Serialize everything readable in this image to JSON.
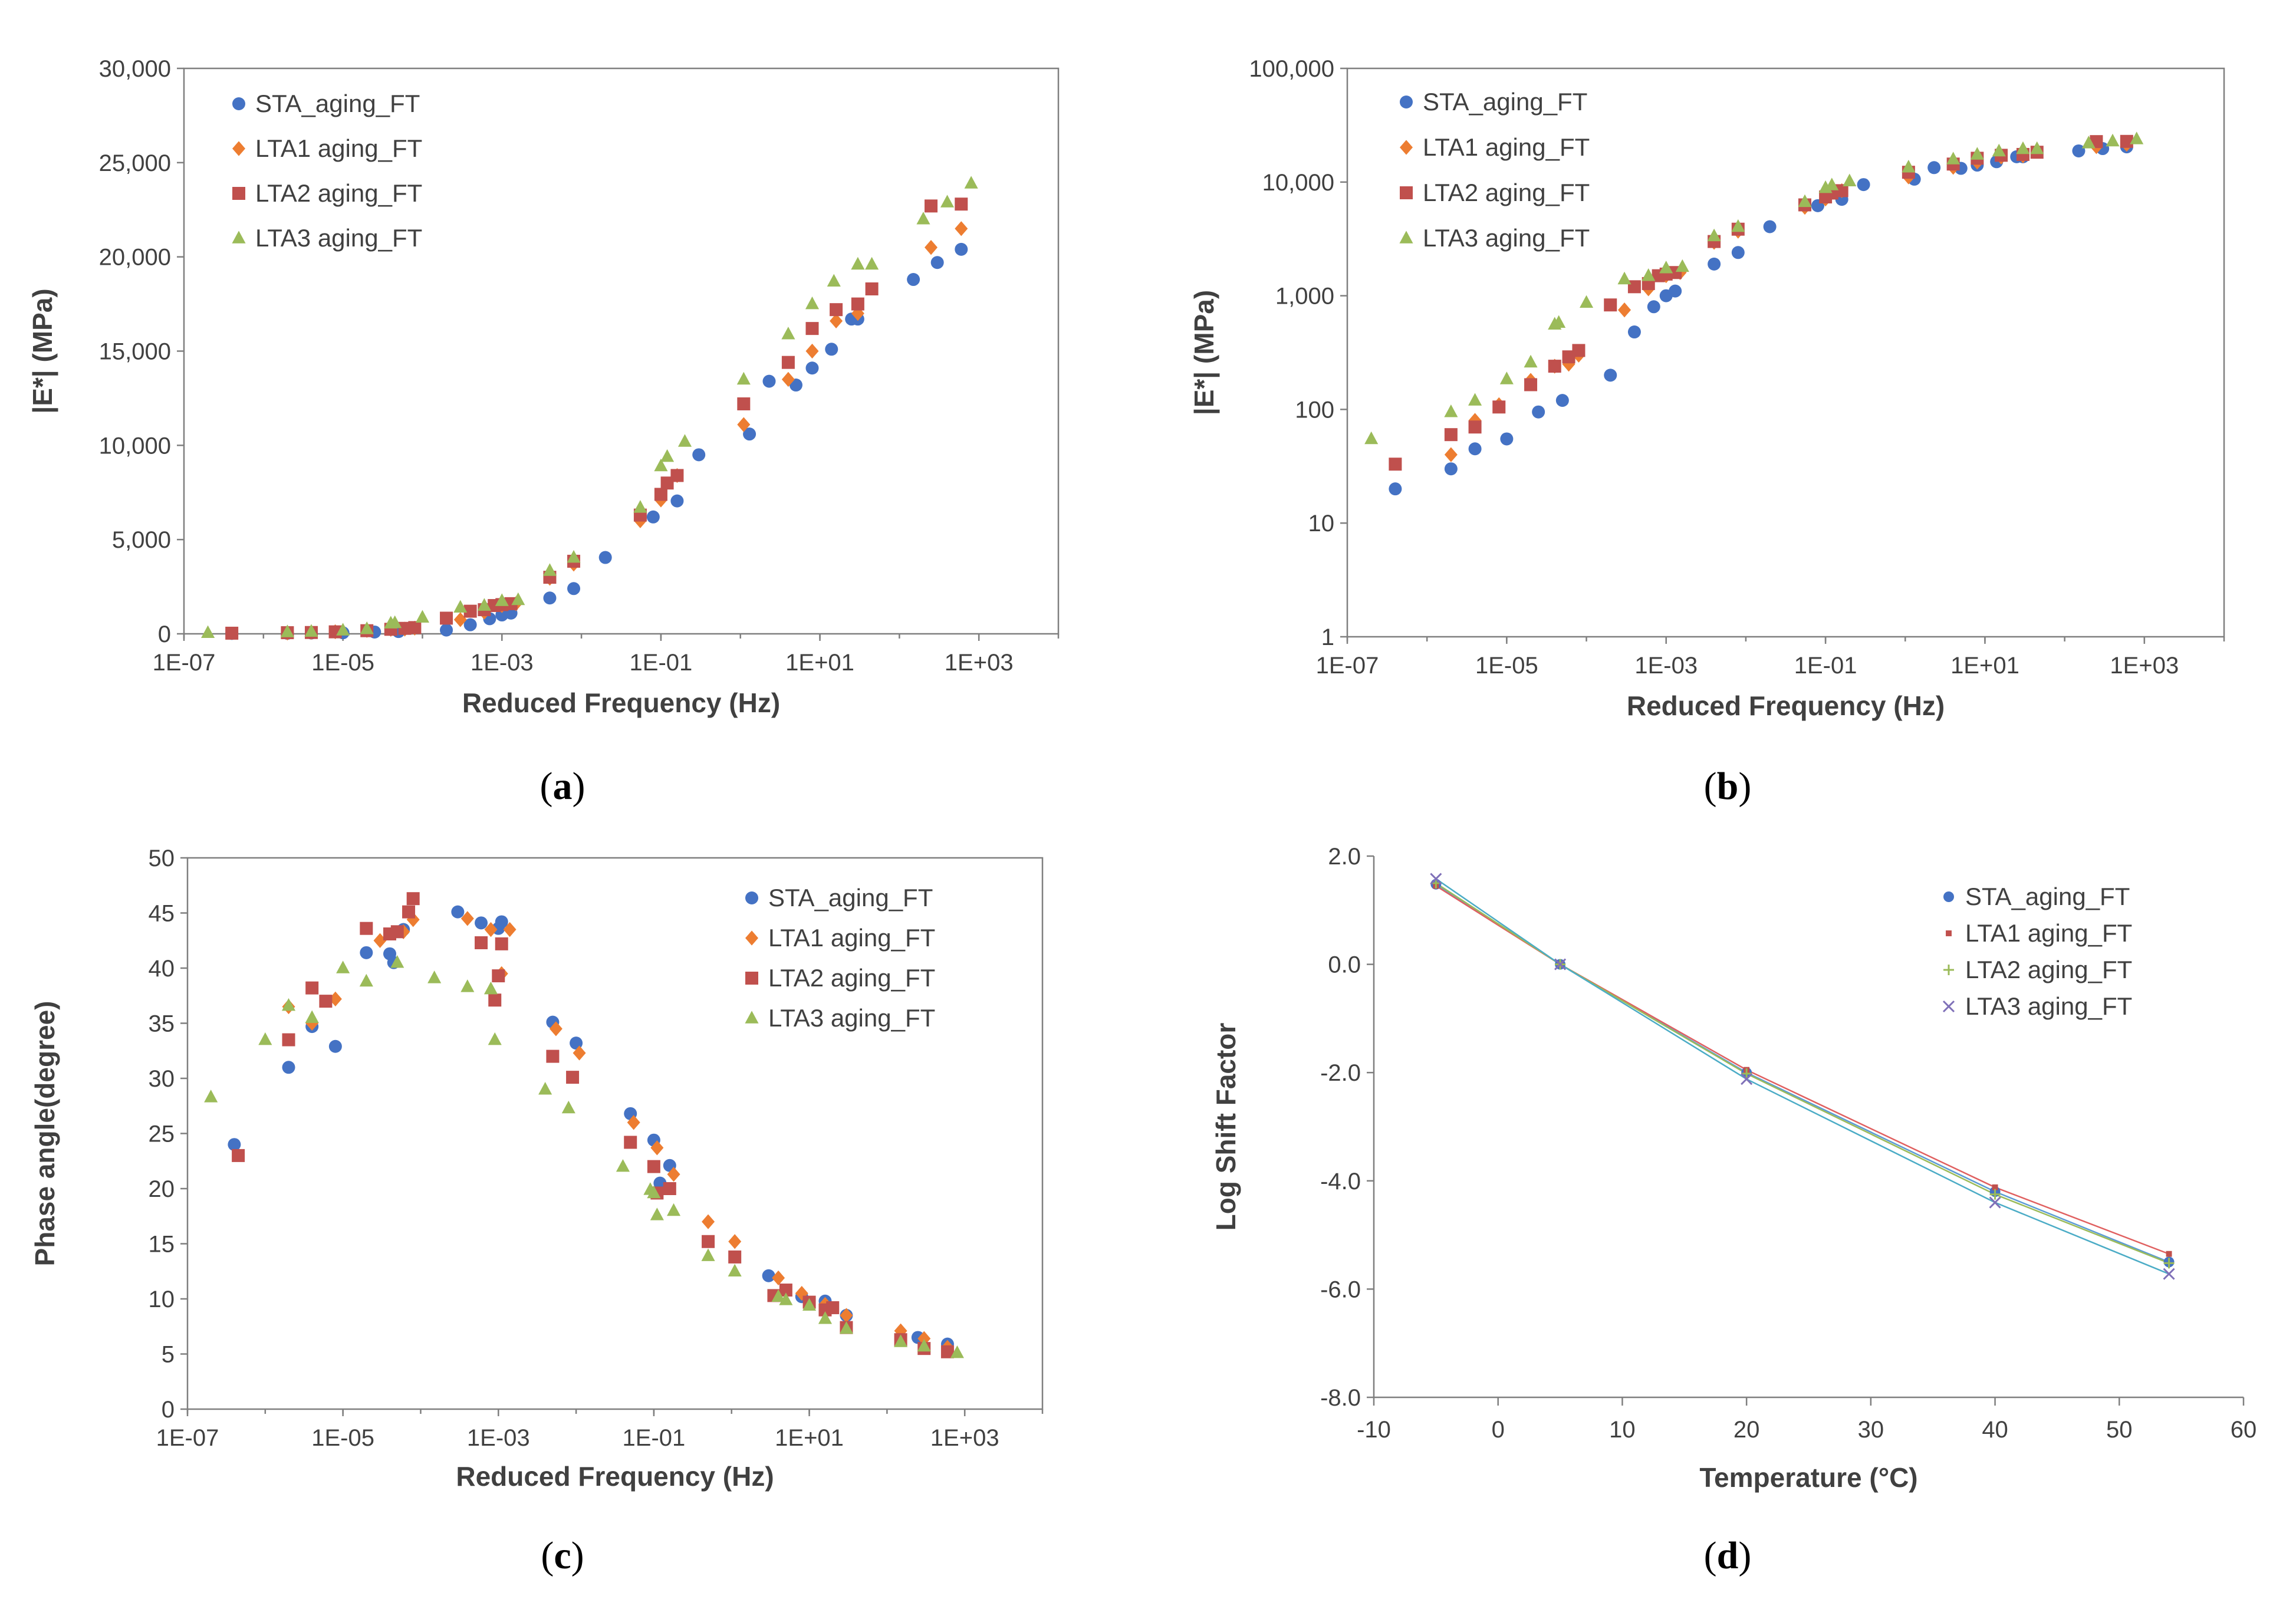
{
  "figure": {
    "panel_labels": [
      {
        "open": "(",
        "letter": "a",
        "close": ")"
      },
      {
        "open": "(",
        "letter": "b",
        "close": ")"
      },
      {
        "open": "(",
        "letter": "c",
        "close": ")"
      },
      {
        "open": "(",
        "letter": "d",
        "close": ")"
      }
    ]
  },
  "colors": {
    "STA": "#4472c4",
    "LTA1": "#ed7d31",
    "LTA2": "#c0504d",
    "LTA3": "#9bbb59",
    "LTA3_d": "#7f70b8",
    "LTA1_d_line": "#e06060",
    "STA_d_line": "#5b9bd5",
    "LTA2_d_line": "#9bbb59",
    "LTA3_d_line": "#4bacc6"
  },
  "chart_data": [
    {
      "id": "a",
      "type": "scatter",
      "title": "",
      "xlabel": "Reduced Frequency (Hz)",
      "ylabel": "|E*| (MPa)",
      "xscale": "log",
      "xlim": [
        1e-07,
        10000.0
      ],
      "ylim": [
        0,
        30000
      ],
      "x_ticks": [
        "1E-07",
        "1E-05",
        "1E-03",
        "1E-01",
        "1E+01",
        "1E+03"
      ],
      "y_ticks": [
        "0",
        "5,000",
        "10,000",
        "15,000",
        "20,000",
        "25,000",
        "30,000"
      ],
      "legend_position": "top-left",
      "series": [
        {
          "name": "STA_aging_FT",
          "marker": "circle",
          "color_key": "STA",
          "x": [
            4e-07,
            2e-06,
            4e-06,
            1e-05,
            2.5e-05,
            5e-05,
            0.0002,
            0.0004,
            0.0007,
            0.001,
            0.0013,
            0.004,
            0.008,
            0.02,
            0.08,
            0.16,
            0.3,
            1.3,
            2.3,
            5,
            8,
            14,
            25,
            30,
            150,
            300,
            600
          ],
          "y": [
            20,
            30,
            45,
            55,
            95,
            120,
            200,
            480,
            800,
            1000,
            1100,
            1900,
            2400,
            4050,
            6200,
            7050,
            9500,
            10600,
            13400,
            13200,
            14100,
            15100,
            16700,
            16700,
            18800,
            19700,
            20400
          ]
        },
        {
          "name": "LTA1 aging_FT",
          "marker": "diamond",
          "color_key": "LTA1",
          "x": [
            2e-06,
            4e-06,
            8e-06,
            2e-05,
            4e-05,
            6e-05,
            8e-05,
            0.0003,
            0.0006,
            0.001,
            0.0015,
            0.004,
            0.008,
            0.055,
            0.1,
            0.16,
            1.1,
            4,
            8,
            16,
            30,
            250,
            600
          ],
          "y": [
            40,
            80,
            110,
            180,
            240,
            250,
            300,
            750,
            1150,
            1500,
            1600,
            2950,
            3700,
            6000,
            7100,
            8400,
            11100,
            13500,
            15000,
            16600,
            17000,
            20500,
            21500
          ]
        },
        {
          "name": "LTA2 aging_FT",
          "marker": "square",
          "color_key": "LTA2",
          "x": [
            4e-07,
            2e-06,
            4e-06,
            8e-06,
            2e-05,
            4e-05,
            6e-05,
            8e-05,
            0.0002,
            0.0004,
            0.0006,
            0.0008,
            0.001,
            0.0013,
            0.004,
            0.008,
            0.055,
            0.1,
            0.12,
            0.16,
            1.1,
            4,
            8,
            16,
            30,
            45,
            250,
            600
          ],
          "y": [
            33,
            60,
            70,
            105,
            165,
            240,
            290,
            330,
            830,
            1200,
            1280,
            1500,
            1550,
            1600,
            3000,
            3850,
            6300,
            7400,
            8000,
            8400,
            12200,
            14400,
            16200,
            17200,
            17500,
            18300,
            22700,
            22800
          ]
        },
        {
          "name": "LTA3 aging_FT",
          "marker": "triangle",
          "color_key": "LTA3",
          "x": [
            2e-07,
            2e-06,
            4e-06,
            1e-05,
            2e-05,
            4e-05,
            4.5e-05,
            0.0001,
            0.0003,
            0.0006,
            0.001,
            0.0016,
            0.004,
            0.008,
            0.055,
            0.1,
            0.12,
            0.2,
            1.1,
            4,
            8,
            15,
            30,
            45,
            200,
            400,
            800
          ],
          "y": [
            55,
            95,
            120,
            185,
            260,
            560,
            580,
            870,
            1400,
            1500,
            1750,
            1800,
            3350,
            4050,
            6700,
            8900,
            9400,
            10200,
            13500,
            15900,
            17500,
            18700,
            19600,
            19600,
            22000,
            22900,
            23900
          ]
        }
      ]
    },
    {
      "id": "b",
      "type": "scatter",
      "title": "",
      "xlabel": "Reduced Frequency (Hz)",
      "ylabel": "|E*| (MPa)",
      "xscale": "log",
      "yscale": "log",
      "xlim": [
        1e-07,
        10000.0
      ],
      "ylim": [
        1,
        100000
      ],
      "x_ticks": [
        "1E-07",
        "1E-05",
        "1E-03",
        "1E-01",
        "1E+01",
        "1E+03"
      ],
      "y_ticks": [
        "1",
        "10",
        "100",
        "1,000",
        "10,000",
        "100,000"
      ],
      "legend_position": "top-left",
      "same_data_as": "a"
    },
    {
      "id": "c",
      "type": "scatter",
      "title": "",
      "xlabel": "Reduced Frequency (Hz)",
      "ylabel": "Phase angle(degree)",
      "xscale": "log",
      "xlim": [
        1e-07,
        10000.0
      ],
      "ylim": [
        0,
        50
      ],
      "x_ticks": [
        "1E-07",
        "1E-05",
        "1E-03",
        "1E-01",
        "1E+01",
        "1E+03"
      ],
      "y_ticks": [
        "0",
        "5",
        "10",
        "15",
        "20",
        "25",
        "30",
        "35",
        "40",
        "45",
        "50"
      ],
      "legend_position": "top-right",
      "series": [
        {
          "name": "STA_aging_FT",
          "marker": "circle",
          "color_key": "STA",
          "x": [
            4e-07,
            2e-06,
            4e-06,
            8e-06,
            2e-05,
            4e-05,
            4.5e-05,
            6e-05,
            0.0003,
            0.0006,
            0.001,
            0.0011,
            0.005,
            0.01,
            0.05,
            0.1,
            0.12,
            0.16,
            3,
            8,
            16,
            30,
            250,
            600
          ],
          "y": [
            24,
            31,
            34.7,
            32.9,
            41.4,
            41.3,
            40.5,
            43.5,
            45.1,
            44.1,
            43.6,
            44.2,
            35.1,
            33.2,
            26.8,
            24.4,
            20.5,
            22.1,
            12.1,
            10.2,
            9.8,
            8.5,
            6.5,
            5.9
          ]
        },
        {
          "name": "LTA1 aging_FT",
          "marker": "diamond",
          "color_key": "LTA1",
          "x": [
            2e-06,
            4e-06,
            8e-06,
            3e-05,
            6e-05,
            8e-05,
            0.0004,
            0.0008,
            0.0011,
            0.0014,
            0.0055,
            0.011,
            0.055,
            0.11,
            0.18,
            0.5,
            1.1,
            4,
            8,
            16,
            30,
            150,
            300,
            600
          ],
          "y": [
            36.5,
            35,
            37.2,
            42.5,
            43.3,
            44.4,
            44.5,
            43.5,
            39.5,
            43.5,
            34.5,
            32.3,
            26,
            23.7,
            21.3,
            17,
            15.2,
            11.9,
            10.5,
            9.5,
            8.5,
            7.1,
            6.4,
            5.6
          ]
        },
        {
          "name": "LTA2 aging_FT",
          "marker": "square",
          "color_key": "LTA2",
          "x": [
            4.5e-07,
            2e-06,
            4e-06,
            6e-06,
            2e-05,
            4e-05,
            5e-05,
            7e-05,
            8e-05,
            0.0006,
            0.0009,
            0.001,
            0.0011,
            0.005,
            0.009,
            0.05,
            0.1,
            0.11,
            0.16,
            0.5,
            1.1,
            3.5,
            5,
            10,
            16,
            20,
            30,
            150,
            300,
            600
          ],
          "y": [
            23,
            33.5,
            38.2,
            37,
            43.6,
            43.1,
            43.3,
            45.1,
            46.3,
            42.3,
            37.1,
            39.3,
            42.2,
            32,
            30.1,
            24.2,
            22,
            19.6,
            20,
            15.2,
            13.8,
            10.3,
            10.8,
            9.7,
            9,
            9.2,
            7.4,
            6.3,
            5.5,
            5.2
          ]
        },
        {
          "name": "LTA3 aging_FT",
          "marker": "triangle",
          "color_key": "LTA3",
          "x": [
            2e-07,
            1e-06,
            2e-06,
            4e-06,
            1e-05,
            2e-05,
            5e-05,
            0.00015,
            0.0004,
            0.0008,
            0.0009,
            0.004,
            0.008,
            0.04,
            0.09,
            0.11,
            0.18,
            0.5,
            0.1,
            1.1,
            4,
            5,
            10,
            16,
            30,
            150,
            300,
            800
          ],
          "y": [
            28.3,
            33.5,
            36.6,
            35.5,
            40,
            38.8,
            40.5,
            39.1,
            38.3,
            38.1,
            33.5,
            29,
            27.3,
            22,
            19.9,
            17.6,
            18,
            13.9,
            19.6,
            12.5,
            10.2,
            9.9,
            9.4,
            8.2,
            7.3,
            6.1,
            5.7,
            5.1
          ]
        }
      ]
    },
    {
      "id": "d",
      "type": "line",
      "title": "",
      "xlabel": "Temperature (°C)",
      "ylabel": "Log Shift Factor",
      "xlim": [
        -10,
        60
      ],
      "ylim": [
        -8,
        2
      ],
      "x_ticks": [
        "-10",
        "0",
        "10",
        "20",
        "30",
        "40",
        "50",
        "60"
      ],
      "y_ticks": [
        "-8.0",
        "-6.0",
        "-4.0",
        "-2.0",
        "0.0",
        "2.0"
      ],
      "legend_position": "top-right",
      "series": [
        {
          "name": "STA_aging_FT",
          "marker": "circle",
          "color_key": "STA",
          "line_color_key": "STA_d_line",
          "x": [
            -5,
            5,
            20,
            40,
            54
          ],
          "y": [
            1.48,
            0,
            -2,
            -4.2,
            -5.5
          ]
        },
        {
          "name": "LTA1 aging_FT",
          "marker": "dot",
          "color_key": "LTA2",
          "line_color_key": "LTA1_d_line",
          "x": [
            -5,
            5,
            20,
            40,
            54
          ],
          "y": [
            1.45,
            0,
            -1.95,
            -4.12,
            -5.35
          ]
        },
        {
          "name": "LTA2 aging_FT",
          "marker": "plus",
          "color_key": "LTA3",
          "line_color_key": "LTA2_d_line",
          "x": [
            -5,
            5,
            20,
            40,
            54
          ],
          "y": [
            1.5,
            0,
            -2.02,
            -4.25,
            -5.52
          ]
        },
        {
          "name": "LTA3 aging_FT",
          "marker": "cross",
          "color_key": "LTA3_d",
          "line_color_key": "LTA3_d_line",
          "x": [
            -5,
            5,
            20,
            40,
            54
          ],
          "y": [
            1.58,
            0,
            -2.12,
            -4.4,
            -5.72
          ]
        }
      ]
    }
  ]
}
